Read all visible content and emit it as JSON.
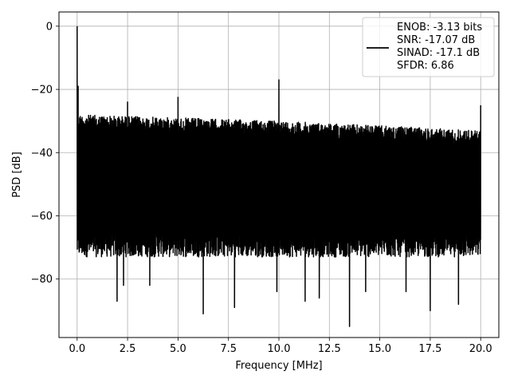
{
  "chart_data": {
    "type": "line",
    "xlabel": "Frequency [MHz]",
    "ylabel": "PSD [dB]",
    "xlim": [
      -0.9,
      20.9
    ],
    "ylim": [
      -98.5,
      4.5
    ],
    "xticks": [
      0.0,
      2.5,
      5.0,
      7.5,
      10.0,
      12.5,
      15.0,
      17.5,
      20.0
    ],
    "xtick_labels": [
      "0.0",
      "2.5",
      "5.0",
      "7.5",
      "10.0",
      "12.5",
      "15.0",
      "17.5",
      "20.0"
    ],
    "yticks": [
      0,
      -20,
      -40,
      -60,
      -80
    ],
    "ytick_labels": [
      "0",
      "−20",
      "−40",
      "−60",
      "−80"
    ],
    "grid": true,
    "legend_position": "top-right",
    "series": [
      {
        "name": "ENOB: -3.13 bits\nSNR: -17.07 dB\nSINAD: -17.1 dB\nSFDR: 6.86",
        "color": "#000000",
        "noise_ceiling": {
          "x": [
            0,
            5,
            10,
            15,
            20
          ],
          "y": [
            -28,
            -29,
            -30,
            -31.5,
            -33
          ]
        },
        "noise_floor_typical": -69,
        "spikes": [
          {
            "x": 0.0,
            "y": 0
          },
          {
            "x": 0.05,
            "y": -19
          },
          {
            "x": 2.5,
            "y": -24
          },
          {
            "x": 5.0,
            "y": -22.5
          },
          {
            "x": 10.0,
            "y": -17
          },
          {
            "x": 20.0,
            "y": -25
          }
        ],
        "dips": [
          {
            "x": 1.98,
            "y": -87
          },
          {
            "x": 2.3,
            "y": -82
          },
          {
            "x": 3.6,
            "y": -82
          },
          {
            "x": 6.25,
            "y": -91
          },
          {
            "x": 7.8,
            "y": -89
          },
          {
            "x": 9.9,
            "y": -84
          },
          {
            "x": 11.3,
            "y": -87
          },
          {
            "x": 12.0,
            "y": -86
          },
          {
            "x": 13.5,
            "y": -95
          },
          {
            "x": 14.3,
            "y": -84
          },
          {
            "x": 16.3,
            "y": -84
          },
          {
            "x": 17.5,
            "y": -90
          },
          {
            "x": 18.9,
            "y": -88
          }
        ]
      }
    ]
  }
}
